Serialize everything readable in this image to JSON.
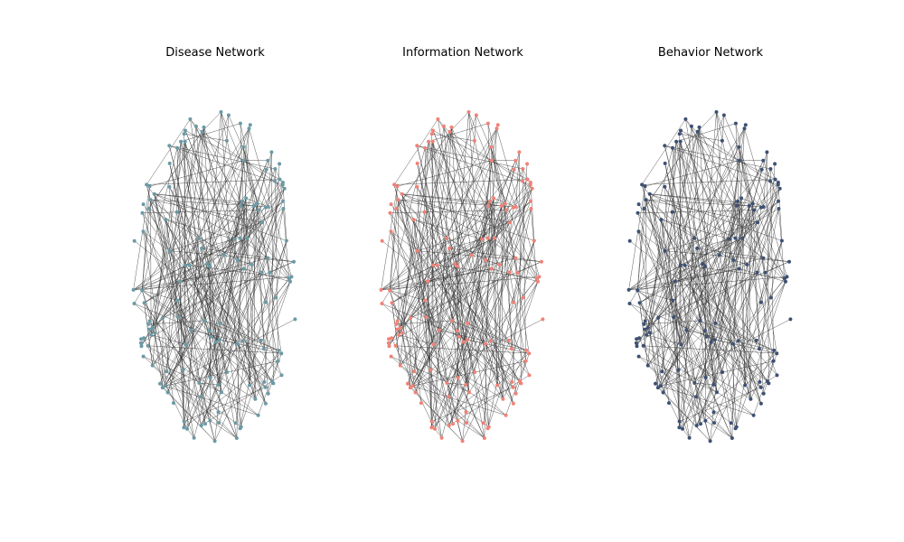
{
  "figure": {
    "panels": [
      {
        "title": "Disease Network",
        "node_color": "#6b9aa6"
      },
      {
        "title": "Information Network",
        "node_color": "#f08277"
      },
      {
        "title": "Behavior Network",
        "node_color": "#3d5174"
      }
    ],
    "edge_color": "#333333"
  }
}
